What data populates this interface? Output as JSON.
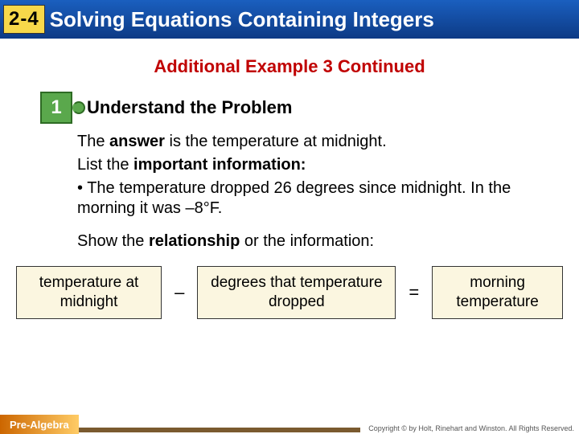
{
  "header": {
    "section_number": "2-4",
    "title": "Solving Equations Containing Integers"
  },
  "example_title": "Additional Example 3 Continued",
  "step": {
    "number": "1",
    "title": "Understand the Problem"
  },
  "body": {
    "answer_sentence_prefix": "The ",
    "answer_word": "answer",
    "answer_sentence_suffix": " is the temperature at midnight.",
    "list_prefix": "List the ",
    "important_phrase": "important information:",
    "bullet": "• The temperature dropped 26 degrees since midnight. In the morning it was –8°F.",
    "show_prefix": "Show the ",
    "relationship_word": "relationship",
    "show_suffix": " or the information:"
  },
  "equation": {
    "box1": "temperature at midnight",
    "op1": "–",
    "box2": "degrees that temperature dropped",
    "op2": "=",
    "box3": "morning temperature"
  },
  "footer": {
    "course": "Pre-Algebra",
    "copyright": "Copyright © by Holt, Rinehart and Winston. All Rights Reserved."
  },
  "colors": {
    "header_gradient_top": "#1a5fbf",
    "header_gradient_bottom": "#0d3a85",
    "badge_bg": "#f7d84a",
    "example_title": "#C00000",
    "puzzle_bg": "#5aa84c",
    "puzzle_border": "#2e6b24",
    "eq_box_bg": "#fbf6e0",
    "footer_gradient_left": "#cc6600",
    "footer_gradient_right": "#ffcc66",
    "footer_brown": "#7a5a2f"
  }
}
